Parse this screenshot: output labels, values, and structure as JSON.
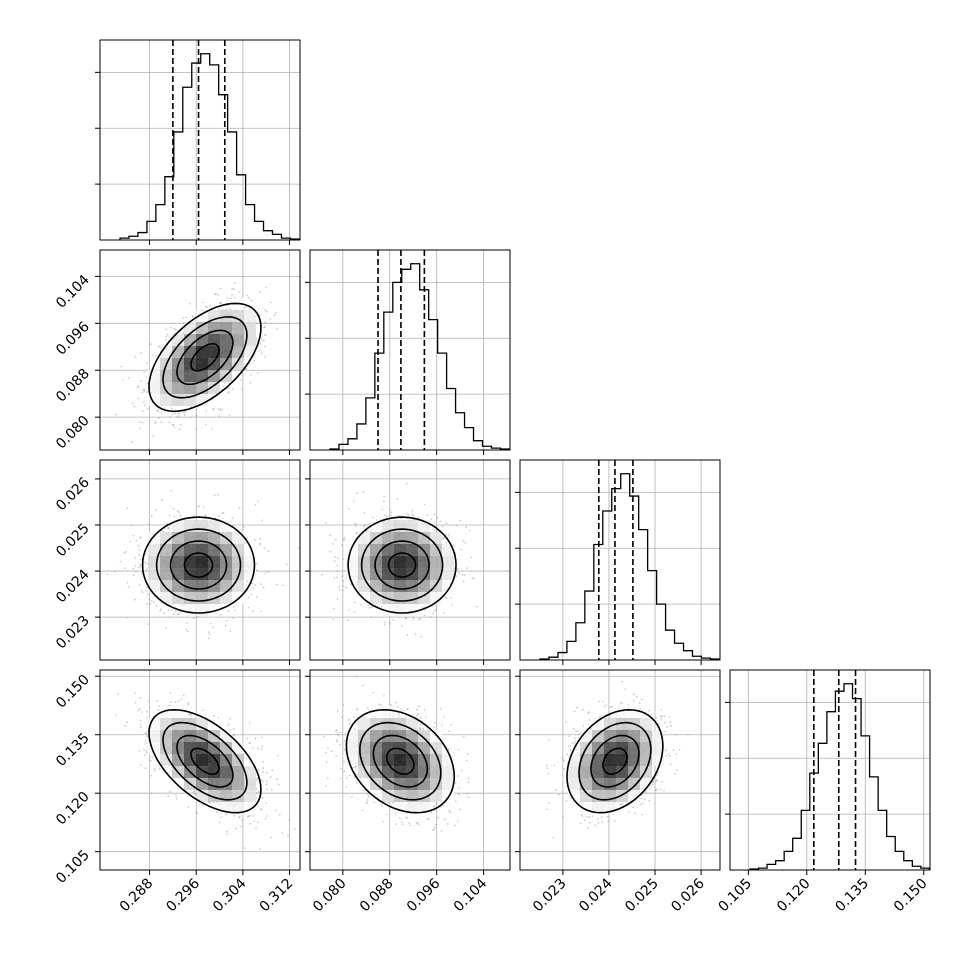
{
  "chart_data": {
    "type": "corner",
    "parameters": [
      {
        "id": "p0",
        "range": [
          0.2795,
          0.3138
        ],
        "ticks": [
          "0.288",
          "0.296",
          "0.304",
          "0.312"
        ],
        "quantiles": [
          0.292,
          0.2964,
          0.3009
        ],
        "hist": [
          1,
          2,
          4,
          10,
          19,
          34,
          58,
          82,
          95,
          100,
          94,
          78,
          58,
          35,
          19,
          10,
          5,
          3,
          1,
          0.5
        ]
      },
      {
        "id": "p1",
        "range": [
          0.0744,
          0.1085
        ],
        "ticks": [
          "0.080",
          "0.088",
          "0.096",
          "0.104"
        ],
        "quantiles": [
          0.086,
          0.0899,
          0.0939
        ],
        "hist": [
          0.5,
          3,
          6,
          14,
          28,
          52,
          74,
          90,
          97,
          100,
          86,
          70,
          52,
          33,
          20,
          12,
          5,
          2,
          1,
          0.5
        ]
      },
      {
        "id": "p2",
        "range": [
          0.02207,
          0.02641
        ],
        "ticks": [
          "0.023",
          "0.024",
          "0.025",
          "0.026"
        ],
        "quantiles": [
          0.02378,
          0.02413,
          0.02452
        ],
        "hist": [
          0.5,
          1.5,
          4,
          10,
          20,
          37,
          62,
          80,
          92,
          100,
          88,
          70,
          48,
          30,
          16,
          9,
          5,
          2,
          1,
          0.5
        ]
      },
      {
        "id": "p3",
        "range": [
          0.1003,
          0.1516
        ],
        "ticks": [
          "0.105",
          "0.120",
          "0.135",
          "0.150"
        ],
        "quantiles": [
          0.1218,
          0.1282,
          0.1325
        ],
        "hist": [
          0.5,
          1,
          3,
          5,
          10,
          17,
          32,
          52,
          68,
          85,
          96,
          100,
          92,
          72,
          50,
          32,
          18,
          10,
          5,
          2,
          1
        ]
      }
    ],
    "pairs": [
      {
        "row": 1,
        "col": 0,
        "center": [
          0.2975,
          0.0902
        ],
        "sd": [
          0.0048,
          0.0046
        ],
        "rho": 0.55
      },
      {
        "row": 2,
        "col": 0,
        "center": [
          0.2964,
          0.02413
        ],
        "sd": [
          0.0048,
          0.00052
        ],
        "rho": 0.0
      },
      {
        "row": 2,
        "col": 1,
        "center": [
          0.0901,
          0.02413
        ],
        "sd": [
          0.0046,
          0.00052
        ],
        "rho": 0.0
      },
      {
        "row": 3,
        "col": 0,
        "center": [
          0.2975,
          0.1282
        ],
        "sd": [
          0.0048,
          0.0066
        ],
        "rho": -0.55
      },
      {
        "row": 3,
        "col": 1,
        "center": [
          0.0898,
          0.1282
        ],
        "sd": [
          0.0046,
          0.0066
        ],
        "rho": -0.3
      },
      {
        "row": 3,
        "col": 2,
        "center": [
          0.02413,
          0.1282
        ],
        "sd": [
          0.00052,
          0.0066
        ],
        "rho": 0.3
      }
    ],
    "contour_levels_sigma": [
      0.5,
      1.0,
      1.5,
      2.0
    ],
    "colors": {
      "line": "#000000",
      "grid": "#b0b0b0",
      "points": "#9a9a9a"
    },
    "grid": true
  }
}
